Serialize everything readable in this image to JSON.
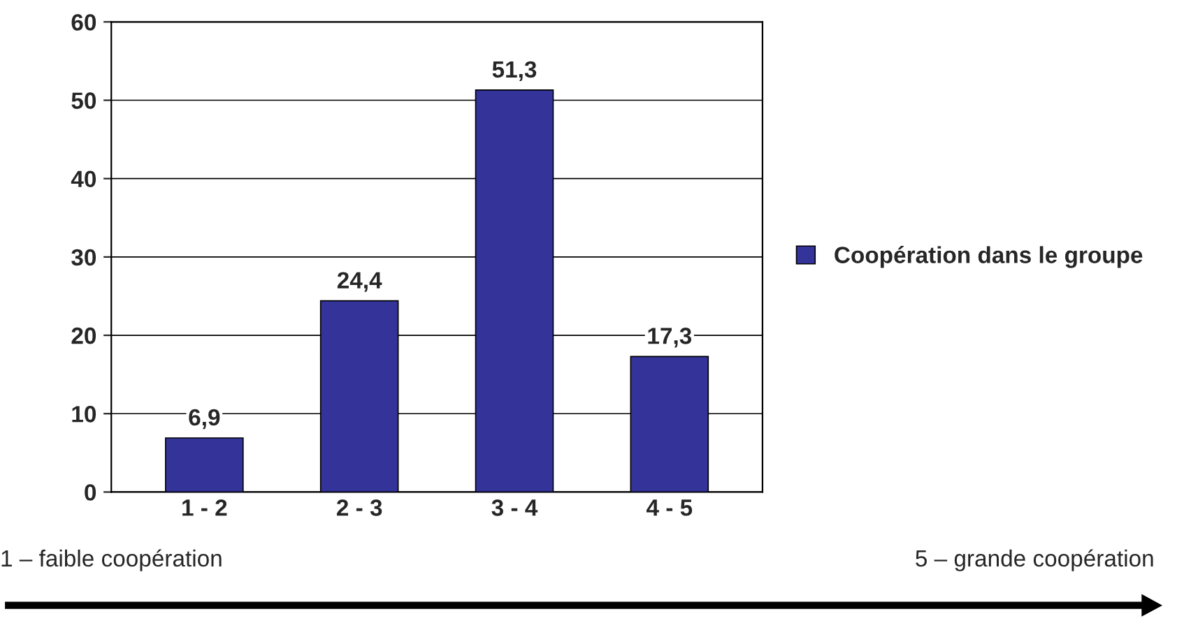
{
  "chart_data": {
    "type": "bar",
    "categories": [
      "1 - 2",
      "2 - 3",
      "3 - 4",
      "4 - 5"
    ],
    "series": [
      {
        "name": "Coopération dans le groupe",
        "color": "#333399",
        "values": [
          6.9,
          24.4,
          51.3,
          17.3
        ],
        "value_labels": [
          "6,9",
          "24,4",
          "51,3",
          "17,3"
        ]
      }
    ],
    "ylim": [
      0,
      60
    ],
    "yticks": [
      0,
      10,
      20,
      30,
      40,
      50,
      60
    ],
    "grid": "y",
    "legend": "right",
    "annotations": [
      "1 – faible coopération",
      "5 – grande coopération"
    ]
  }
}
